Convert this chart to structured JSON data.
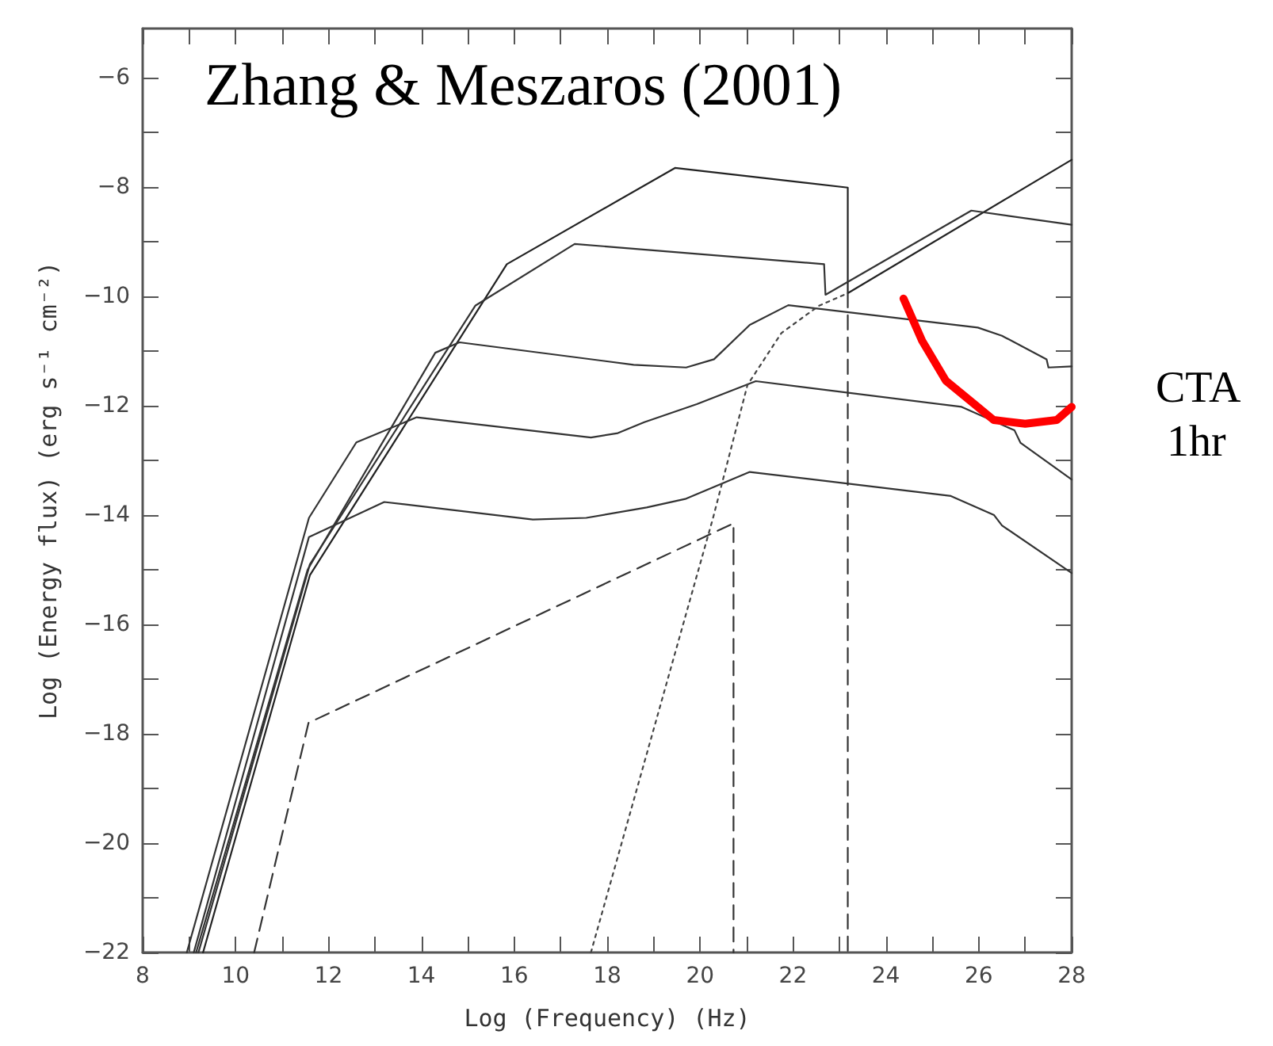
{
  "chart_data": {
    "type": "line",
    "title": "Zhang & Meszaros (2001)",
    "xlabel": "Log (Frequency) (Hz)",
    "ylabel": "Log (Energy flux) (erg s⁻¹ cm⁻²)",
    "xlim": [
      8,
      28
    ],
    "xticks": [
      8,
      10,
      12,
      14,
      16,
      18,
      20,
      22,
      24,
      26,
      28
    ],
    "ylim": [
      -22,
      -5.1
    ],
    "yticks": [
      -22,
      -20,
      -18,
      -16,
      -14,
      -12,
      -10,
      -8,
      -6
    ],
    "grid": false,
    "legend": false,
    "marker": "none",
    "series": [
      {
        "color": "#222222",
        "line_style": "solid",
        "x": [
          9.3,
          11.6,
          15.84,
          19.46,
          23.18,
          23.18,
          28
        ],
        "values": [
          -22,
          -15.1,
          -9.41,
          -7.65,
          -8.01,
          -9.94,
          -7.5
        ]
      },
      {
        "color": "#333333",
        "line_style": "solid",
        "x": [
          9.2,
          11.6,
          15.16,
          17.3,
          22.67,
          22.7,
          25.84,
          28
        ],
        "values": [
          -22,
          -14.9,
          -10.17,
          -9.04,
          -9.41,
          -9.97,
          -8.43,
          -8.69
        ]
      },
      {
        "color": "#333333",
        "line_style": "solid",
        "x": [
          9.15,
          11.55,
          14.3,
          14.82,
          18.57,
          19.7,
          20.3,
          21.07,
          21.9,
          25.98,
          26.5,
          27.46,
          27.5,
          28
        ],
        "values": [
          -22,
          -15.0,
          -11.03,
          -10.84,
          -11.25,
          -11.3,
          -11.15,
          -10.52,
          -10.16,
          -10.57,
          -10.72,
          -11.15,
          -11.3,
          -11.28
        ]
      },
      {
        "color": "#333333",
        "line_style": "solid",
        "x": [
          8.95,
          11.58,
          12.6,
          13.9,
          17.65,
          18.23,
          18.8,
          19.93,
          21.2,
          25.63,
          26.77,
          26.9,
          28
        ],
        "values": [
          -22,
          -14.05,
          -12.67,
          -12.21,
          -12.58,
          -12.5,
          -12.3,
          -11.97,
          -11.55,
          -12.02,
          -12.45,
          -12.68,
          -13.35
        ]
      },
      {
        "color": "#333333",
        "line_style": "solid",
        "x": [
          9.1,
          11.58,
          13.2,
          16.4,
          17.55,
          18.85,
          19.7,
          21.07,
          25.4,
          26.33,
          26.5,
          28
        ],
        "values": [
          -22,
          -14.4,
          -13.76,
          -14.08,
          -14.05,
          -13.86,
          -13.7,
          -13.21,
          -13.65,
          -14.0,
          -14.19,
          -15.06
        ]
      },
      {
        "color": "#333333",
        "line_style": "dashed",
        "x": [
          10.4,
          11.57,
          20.72,
          20.72
        ],
        "values": [
          -22,
          -17.8,
          -14.15,
          -22
        ]
      },
      {
        "color": "#444444",
        "line_style": "dotted",
        "x": [
          17.65,
          20.28,
          20.6,
          21.02,
          21.75,
          22.56,
          23.18
        ],
        "values": [
          -22,
          -14.05,
          -13,
          -11.62,
          -10.67,
          -10.17,
          -9.94
        ]
      },
      {
        "color": "#333333",
        "line_style": "dashed",
        "x": [
          23.18,
          23.18
        ],
        "values": [
          -9.94,
          -22
        ]
      },
      {
        "name": "CTA 1hr",
        "color": "#ff0000",
        "line_style": "solid",
        "x": [
          24.38,
          24.78,
          25.29,
          26.32,
          27.0,
          27.68,
          28
        ],
        "values": [
          -10.04,
          -10.81,
          -11.54,
          -12.26,
          -12.33,
          -12.26,
          -12.02
        ]
      }
    ]
  }
}
